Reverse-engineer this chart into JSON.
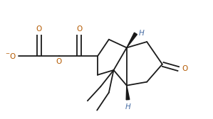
{
  "bg": "#ffffff",
  "bc": "#1a1a1a",
  "oc": "#b35900",
  "hc": "#4a6fa5",
  "lw": 1.3,
  "figsize": [
    2.99,
    1.68
  ],
  "dpi": 100,
  "xlim": [
    0.0,
    8.5
  ],
  "ylim": [
    0.0,
    5.0
  ]
}
